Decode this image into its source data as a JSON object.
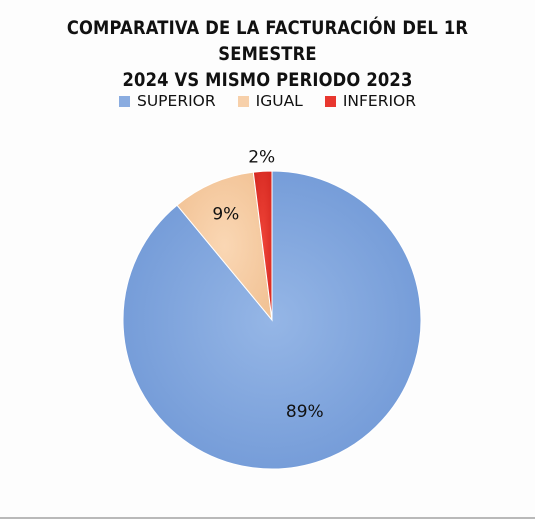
{
  "chart_data": {
    "type": "pie",
    "title_lines": [
      "COMPARATIVA DE LA FACTURACIÓN DEL 1R SEMESTRE",
      "2024 VS MISMO PERIODO 2023"
    ],
    "legend_position": "top",
    "categories": [
      "SUPERIOR",
      "IGUAL",
      "INFERIOR"
    ],
    "values": [
      89,
      9,
      2
    ],
    "data_labels": [
      "89%",
      "9%",
      "2%"
    ],
    "colors": [
      "#8aace0",
      "#f7d0aa",
      "#e8372f"
    ]
  }
}
